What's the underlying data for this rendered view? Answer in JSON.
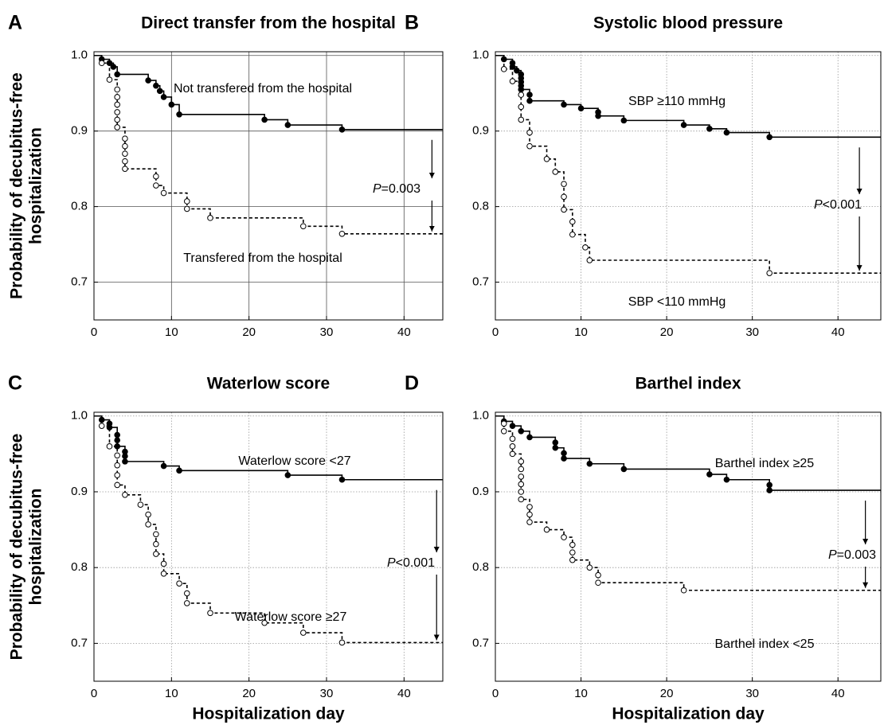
{
  "chart_data": [
    {
      "type": "step",
      "letter": "A",
      "title": "Direct transfer from the hospital",
      "y_label": [
        "Probability of decubitus-free",
        "hospitalization"
      ],
      "xlim": [
        0,
        45
      ],
      "ylim": [
        0.65,
        1.005
      ],
      "xticks": [
        0,
        10,
        20,
        30,
        40
      ],
      "yticks": [
        0.7,
        0.8,
        0.9,
        {
          "value": 1,
          "label": "1.0"
        }
      ],
      "grid": true,
      "grid_style": "solid",
      "p_value": "P=0.003",
      "series": [
        {
          "name": "Not transfered from the hospital",
          "color": "#000",
          "line": "solid",
          "marker": "filled",
          "x": [
            0,
            1,
            2,
            2.5,
            3,
            7,
            8,
            8.5,
            9,
            10,
            11,
            22,
            25,
            32
          ],
          "values": [
            1,
            0.995,
            0.99,
            0.985,
            0.975,
            0.967,
            0.96,
            0.953,
            0.945,
            0.935,
            0.922,
            0.915,
            0.908,
            0.902
          ]
        },
        {
          "name": "Transfered from the hospital",
          "color": "#000",
          "line": "dashed",
          "marker": "open",
          "x": [
            0,
            1,
            2,
            3,
            3,
            3,
            3,
            3,
            3,
            4,
            4,
            4,
            4,
            4,
            8,
            8,
            9,
            12,
            12,
            15,
            27,
            32
          ],
          "values": [
            1,
            0.99,
            0.968,
            0.955,
            0.945,
            0.935,
            0.925,
            0.915,
            0.905,
            0.89,
            0.88,
            0.87,
            0.86,
            0.85,
            0.84,
            0.828,
            0.818,
            0.807,
            0.797,
            0.785,
            0.774,
            0.764
          ]
        }
      ]
    },
    {
      "type": "step",
      "letter": "B",
      "title": "Systolic blood pressure",
      "xlim": [
        0,
        45
      ],
      "ylim": [
        0.65,
        1.005
      ],
      "xticks": [
        0,
        10,
        20,
        30,
        40
      ],
      "yticks": [
        0.7,
        0.8,
        0.9,
        {
          "value": 1,
          "label": "1.0"
        }
      ],
      "grid": true,
      "grid_style": "dotted",
      "p_value": "P<0.001",
      "series": [
        {
          "name": "SBP ≥110 mmHg",
          "color": "#000",
          "line": "solid",
          "marker": "filled",
          "x": [
            0,
            1,
            2,
            2,
            2.5,
            3,
            3,
            3,
            3,
            3,
            4,
            4,
            8,
            10,
            12,
            12,
            15,
            22,
            25,
            27,
            32
          ],
          "values": [
            1,
            0.995,
            0.99,
            0.985,
            0.98,
            0.975,
            0.97,
            0.965,
            0.96,
            0.955,
            0.948,
            0.94,
            0.935,
            0.93,
            0.925,
            0.92,
            0.914,
            0.908,
            0.903,
            0.898,
            0.892
          ]
        },
        {
          "name": "SBP <110 mmHg",
          "color": "#000",
          "line": "dashed",
          "marker": "open",
          "x": [
            0,
            1,
            2,
            3,
            3,
            3,
            4,
            4,
            6,
            7,
            8,
            8,
            8,
            9,
            9,
            10.5,
            11,
            32
          ],
          "values": [
            1,
            0.982,
            0.966,
            0.948,
            0.932,
            0.915,
            0.898,
            0.88,
            0.863,
            0.846,
            0.83,
            0.813,
            0.796,
            0.78,
            0.763,
            0.746,
            0.729,
            0.712
          ]
        }
      ]
    },
    {
      "type": "step",
      "letter": "C",
      "title": "Waterlow score",
      "y_label": [
        "Probability of decubitus-free",
        "hospitalization"
      ],
      "x_label": "Hospitalization day",
      "xlim": [
        0,
        45
      ],
      "ylim": [
        0.65,
        1.005
      ],
      "xticks": [
        0,
        10,
        20,
        30,
        40
      ],
      "yticks": [
        0.7,
        0.8,
        0.9,
        {
          "value": 1,
          "label": "1.0"
        }
      ],
      "grid": true,
      "grid_style": "dotted",
      "p_value": "P<0.001",
      "series": [
        {
          "name": "Waterlow score <27",
          "color": "#000",
          "line": "solid",
          "marker": "filled",
          "x": [
            0,
            1,
            2,
            2,
            3,
            3,
            3,
            4,
            4,
            4,
            9,
            11,
            25,
            32
          ],
          "values": [
            1,
            0.995,
            0.99,
            0.985,
            0.975,
            0.968,
            0.96,
            0.953,
            0.947,
            0.94,
            0.934,
            0.928,
            0.922,
            0.916
          ]
        },
        {
          "name": "Waterlow score ≥27",
          "color": "#000",
          "line": "dashed",
          "marker": "open",
          "x": [
            0,
            1,
            2,
            3,
            3,
            3,
            3,
            4,
            6,
            7,
            7,
            8,
            8,
            8,
            9,
            9,
            11,
            12,
            12,
            15,
            22,
            27,
            32
          ],
          "values": [
            1,
            0.987,
            0.96,
            0.948,
            0.935,
            0.922,
            0.909,
            0.896,
            0.883,
            0.87,
            0.857,
            0.844,
            0.831,
            0.818,
            0.805,
            0.792,
            0.779,
            0.766,
            0.753,
            0.74,
            0.727,
            0.714,
            0.701
          ]
        }
      ]
    },
    {
      "type": "step",
      "letter": "D",
      "title": "Barthel index",
      "x_label": "Hospitalization day",
      "xlim": [
        0,
        45
      ],
      "ylim": [
        0.65,
        1.005
      ],
      "xticks": [
        0,
        10,
        20,
        30,
        40
      ],
      "yticks": [
        0.7,
        0.8,
        0.9,
        {
          "value": 1,
          "label": "1.0"
        }
      ],
      "grid": true,
      "grid_style": "dotted",
      "p_value": "P=0.003",
      "series": [
        {
          "name": "Barthel index ≥25",
          "color": "#000",
          "line": "solid",
          "marker": "filled",
          "x": [
            0,
            1,
            2,
            3,
            4,
            7,
            7,
            8,
            8,
            11,
            15,
            25,
            27,
            32,
            32
          ],
          "values": [
            1,
            0.993,
            0.987,
            0.98,
            0.972,
            0.965,
            0.958,
            0.951,
            0.944,
            0.937,
            0.93,
            0.923,
            0.916,
            0.909,
            0.902
          ]
        },
        {
          "name": "Barthel index <25",
          "color": "#000",
          "line": "dashed",
          "marker": "open",
          "x": [
            0,
            1,
            1,
            2,
            2,
            2,
            3,
            3,
            3,
            3,
            3,
            3,
            4,
            4,
            4,
            6,
            8,
            9,
            9,
            9,
            11,
            12,
            12,
            22
          ],
          "values": [
            1,
            0.99,
            0.98,
            0.97,
            0.96,
            0.95,
            0.94,
            0.93,
            0.92,
            0.91,
            0.9,
            0.89,
            0.88,
            0.87,
            0.86,
            0.85,
            0.84,
            0.83,
            0.82,
            0.81,
            0.8,
            0.79,
            0.78,
            0.77
          ]
        }
      ]
    }
  ]
}
